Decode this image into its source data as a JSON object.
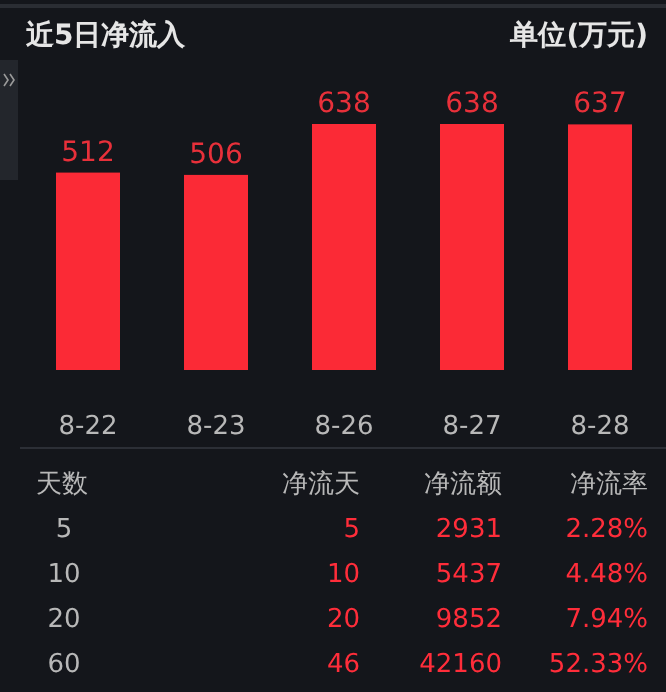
{
  "chart_data": [
    {
      "type": "bar",
      "title": "近5日净流入",
      "subtitle": "单位(万元)",
      "categories": [
        "8-22",
        "8-23",
        "8-26",
        "8-27",
        "8-28"
      ],
      "values": [
        512,
        506,
        638,
        638,
        637
      ],
      "color": "#fb2a36",
      "data_labels": true
    },
    {
      "type": "other",
      "annotations": [
        "天数",
        "净流天",
        "净流额",
        "净流率",
        "5",
        "5",
        "2931",
        "2.28%",
        "10",
        "10",
        "5437",
        "4.48%",
        "20",
        "20",
        "9852",
        "7.94%",
        "60",
        "46",
        "42160",
        "52.33%"
      ]
    }
  ]
}
